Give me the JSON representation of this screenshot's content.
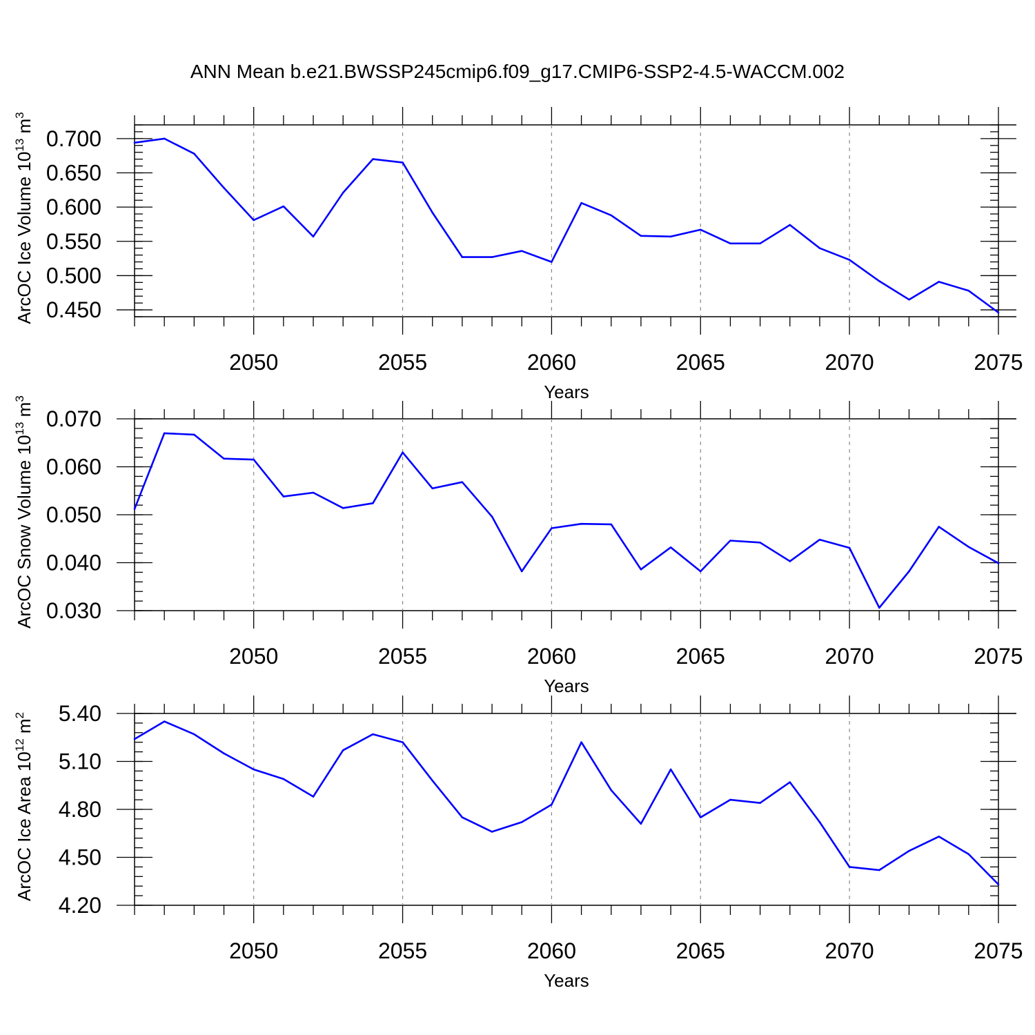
{
  "title": "ANN Mean b.e21.BWSSP245cmip6.f09_g17.CMIP6-SSP2-4.5-WACCM.002",
  "colors": {
    "line": "#0000ff",
    "grid": "#888888"
  },
  "chart_data": [
    {
      "type": "line",
      "ylabel": {
        "text": "ArcOC Ice Volume 10",
        "exp": "13",
        "unit": " m",
        "unit_exp": "3"
      },
      "xlabel": "Years",
      "xlim": [
        2046,
        2075
      ],
      "ylim": [
        0.44,
        0.72
      ],
      "yticks": [
        0.45,
        0.5,
        0.55,
        0.6,
        0.65,
        0.7
      ],
      "ytick_labels": [
        "0.450",
        "0.500",
        "0.550",
        "0.600",
        "0.650",
        "0.700"
      ],
      "yminor_step": 0.01,
      "xticks": [
        2050,
        2055,
        2060,
        2065,
        2070,
        2075
      ],
      "xtick_labels": [
        "2050",
        "2055",
        "2060",
        "2065",
        "2070",
        "2075"
      ],
      "grid_x": true,
      "x": [
        2046,
        2047,
        2048,
        2049,
        2050,
        2051,
        2052,
        2053,
        2054,
        2055,
        2056,
        2057,
        2058,
        2059,
        2060,
        2061,
        2062,
        2063,
        2064,
        2065,
        2066,
        2067,
        2068,
        2069,
        2070,
        2071,
        2072,
        2073,
        2074,
        2075
      ],
      "values": [
        0.694,
        0.7,
        0.678,
        0.628,
        0.581,
        0.601,
        0.557,
        0.621,
        0.67,
        0.665,
        0.592,
        0.527,
        0.527,
        0.536,
        0.52,
        0.606,
        0.588,
        0.558,
        0.557,
        0.567,
        0.547,
        0.547,
        0.574,
        0.54,
        0.523,
        0.492,
        0.465,
        0.491,
        0.478,
        0.446
      ]
    },
    {
      "type": "line",
      "ylabel": {
        "text": "ArcOC Snow Volume 10",
        "exp": "13",
        "unit": " m",
        "unit_exp": "3"
      },
      "xlabel": "Years",
      "xlim": [
        2046,
        2075
      ],
      "ylim": [
        0.03,
        0.07
      ],
      "yticks": [
        0.03,
        0.04,
        0.05,
        0.06,
        0.07
      ],
      "ytick_labels": [
        "0.030",
        "0.040",
        "0.050",
        "0.060",
        "0.070"
      ],
      "yminor_step": 0.002,
      "xticks": [
        2050,
        2055,
        2060,
        2065,
        2070,
        2075
      ],
      "xtick_labels": [
        "2050",
        "2055",
        "2060",
        "2065",
        "2070",
        "2075"
      ],
      "grid_x": true,
      "x": [
        2046,
        2047,
        2048,
        2049,
        2050,
        2051,
        2052,
        2053,
        2054,
        2055,
        2056,
        2057,
        2058,
        2059,
        2060,
        2061,
        2062,
        2063,
        2064,
        2065,
        2066,
        2067,
        2068,
        2069,
        2070,
        2071,
        2072,
        2073,
        2074,
        2075
      ],
      "values": [
        0.0512,
        0.067,
        0.0667,
        0.0617,
        0.0615,
        0.0538,
        0.0546,
        0.0514,
        0.0524,
        0.063,
        0.0555,
        0.0568,
        0.0496,
        0.0382,
        0.0472,
        0.0481,
        0.048,
        0.0386,
        0.0432,
        0.0382,
        0.0446,
        0.0442,
        0.0403,
        0.0448,
        0.0431,
        0.0306,
        0.0382,
        0.0475,
        0.0433,
        0.0399
      ]
    },
    {
      "type": "line",
      "ylabel": {
        "text": "ArcOC Ice Area 10",
        "exp": "12",
        "unit": " m",
        "unit_exp": "2"
      },
      "xlabel": "Years",
      "xlim": [
        2046,
        2075
      ],
      "ylim": [
        4.2,
        5.4
      ],
      "yticks": [
        4.2,
        4.5,
        4.8,
        5.1,
        5.4
      ],
      "ytick_labels": [
        "4.20",
        "4.50",
        "4.80",
        "5.10",
        "5.40"
      ],
      "yminor_step": 0.06,
      "xticks": [
        2050,
        2055,
        2060,
        2065,
        2070,
        2075
      ],
      "xtick_labels": [
        "2050",
        "2055",
        "2060",
        "2065",
        "2070",
        "2075"
      ],
      "grid_x": true,
      "x": [
        2046,
        2047,
        2048,
        2049,
        2050,
        2051,
        2052,
        2053,
        2054,
        2055,
        2056,
        2057,
        2058,
        2059,
        2060,
        2061,
        2062,
        2063,
        2064,
        2065,
        2066,
        2067,
        2068,
        2069,
        2070,
        2071,
        2072,
        2073,
        2074,
        2075
      ],
      "values": [
        5.24,
        5.35,
        5.27,
        5.15,
        5.05,
        4.99,
        4.88,
        5.17,
        5.27,
        5.22,
        4.98,
        4.75,
        4.66,
        4.72,
        4.83,
        5.22,
        4.92,
        4.71,
        5.05,
        4.75,
        4.86,
        4.84,
        4.97,
        4.72,
        4.44,
        4.42,
        4.54,
        4.63,
        4.52,
        4.33
      ]
    }
  ]
}
